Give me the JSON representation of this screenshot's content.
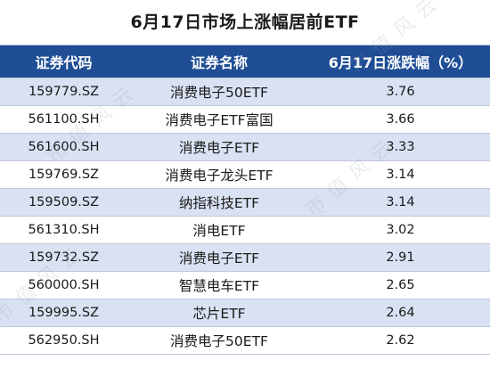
{
  "title": "6月17日市场上涨幅居前ETF",
  "headers": {
    "code": "证券代码",
    "name": "证券名称",
    "change": "6月17日涨跌幅（%）"
  },
  "rows": [
    {
      "code": "159779.SZ",
      "name": "消费电子50ETF",
      "change": "3.76"
    },
    {
      "code": "561100.SH",
      "name": "消费电子ETF富国",
      "change": "3.66"
    },
    {
      "code": "561600.SH",
      "name": "消费电子ETF",
      "change": "3.33"
    },
    {
      "code": "159769.SZ",
      "name": "消费电子龙头ETF",
      "change": "3.14"
    },
    {
      "code": "159509.SZ",
      "name": "纳指科技ETF",
      "change": "3.14"
    },
    {
      "code": "561310.SH",
      "name": "消电ETF",
      "change": "3.02"
    },
    {
      "code": "159732.SZ",
      "name": "消费电子ETF",
      "change": "2.91"
    },
    {
      "code": "560000.SH",
      "name": "智慧电车ETF",
      "change": "2.65"
    },
    {
      "code": "159995.SZ",
      "name": "芯片ETF",
      "change": "2.64"
    },
    {
      "code": "562950.SH",
      "name": "消费电子50ETF",
      "change": "2.62"
    }
  ],
  "watermark": "市值风云",
  "colors": {
    "header_bg": "#1f4e95",
    "header_text": "#ffffff",
    "stripe": "#d9e2f3"
  }
}
